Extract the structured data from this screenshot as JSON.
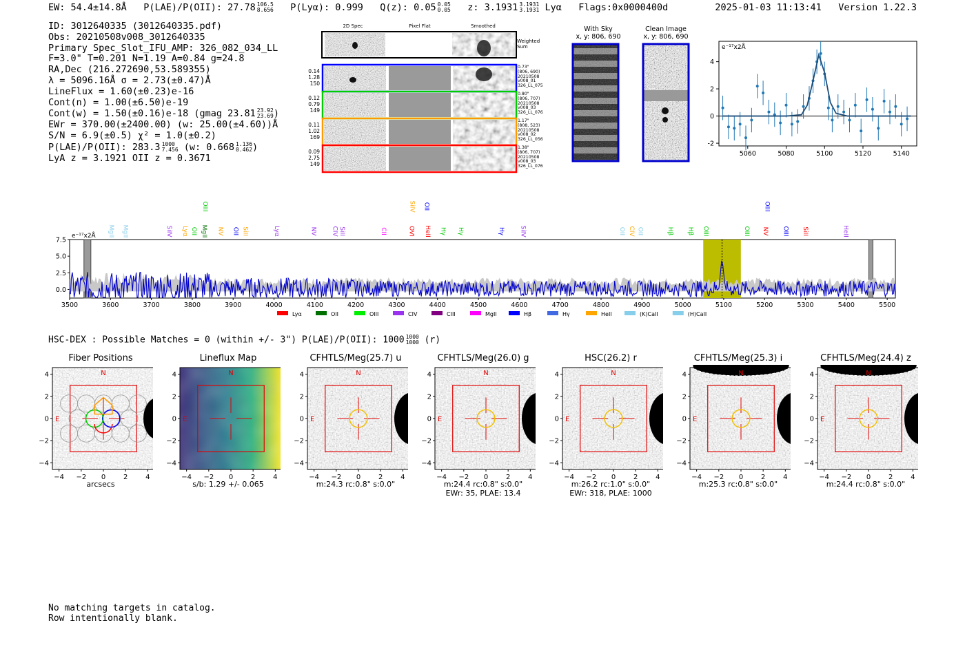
{
  "header": {
    "ew": "EW: 54.4±14.8Å",
    "plae_label": "P(LAE)/P(OII): 27.78",
    "plae_hi": "106.5",
    "plae_lo": "8.656",
    "plya": "P(Lyα): 0.999",
    "qz_label": "Q(z): 0.05",
    "qz_hi": "0.05",
    "qz_lo": "0.05",
    "z_label": "z: 3.1931",
    "z_hi": "3.1931",
    "z_lo": "3.1931",
    "z_line": "Lyα",
    "flags": "Flags:0x0000400d",
    "datetime": "2025-01-03 11:13:41",
    "version": "Version 1.22.3"
  },
  "info": {
    "id": "ID: 3012640335 (3012640335.pdf)",
    "obs": "Obs: 20210508v008_3012640335",
    "primary": "Primary Spec_Slot_IFU_AMP: 326_082_034_LL",
    "fit": "F=3.0\"  T=0.201  N=1.19  A=0.84  g=24.8",
    "radec": "RA,Dec (216.272690,53.589355)",
    "lambda": "λ = 5096.16Å  σ = 2.73(±0.47)Å",
    "lineflux": "LineFlux = 1.60(±0.23)e-16",
    "contn": "Cont(n) = 1.00(±6.50)e-19",
    "contw": "Cont(w) = 1.50(±0.16)e-18 (gmag 23.81",
    "contw_hi": "23.92",
    "contw_lo": "23.69",
    "ewr": "EWr = 370.00(±2400.00) (w: 25.00(±4.60))Å",
    "sn": "S/N = 6.9(±0.5)  χ² = 1.0(±0.2)",
    "plae2": "P(LAE)/P(OII): 283.3",
    "plae2_hi": "1000",
    "plae2_lo": "7.456",
    "plae2_w": "(w: 0.668",
    "plae2_w_hi": "1.136",
    "plae2_w_lo": "0.462",
    "lyaz": "LyA z = 3.1921  OII z = 0.3671"
  },
  "stamps": {
    "col_2d": "2D Spec",
    "col_flat": "Pixel Flat",
    "col_smooth": "Smoothed",
    "weighted": "Weighted Sum",
    "fibers": [
      {
        "a": "0.14",
        "b": "1.28",
        "c": "150",
        "pos": "0.73\"",
        "xy": "(806, 690)",
        "date": "20210508",
        "shot": "v008_01",
        "amp": "326_LL_075",
        "color": "#0000ff"
      },
      {
        "a": "0.12",
        "b": "0.79",
        "c": "149",
        "pos": "0.80\"",
        "xy": "(806, 707)",
        "date": "20210508",
        "shot": "v008_03",
        "amp": "326_LL_076",
        "color": "#00cc00"
      },
      {
        "a": "0.11",
        "b": "1.02",
        "c": "169",
        "pos": "1.17\"",
        "xy": "(808, 523)",
        "date": "20210508",
        "shot": "v008_02",
        "amp": "326_LL_056",
        "color": "#ff9900"
      },
      {
        "a": "0.09",
        "b": "2.75",
        "c": "149",
        "pos": "1.38\"",
        "xy": "(806, 707)",
        "date": "20210508",
        "shot": "v008_03",
        "amp": "326_LL_076",
        "color": "#ff0000"
      }
    ],
    "with_sky": "With Sky",
    "with_sky_xy": "x, y: 806, 690",
    "clean": "Clean Image",
    "clean_xy": "x, y: 806, 690"
  },
  "chart_data": [
    {
      "type": "line",
      "title": "zoom spectrum",
      "ylabel": "e⁻¹⁷x2Å",
      "x": [
        5047,
        5050,
        5053,
        5056,
        5059,
        5062,
        5065,
        5068,
        5071,
        5074,
        5077,
        5080,
        5083,
        5086,
        5089,
        5092,
        5094,
        5096,
        5098,
        5100,
        5102,
        5104,
        5107,
        5110,
        5113,
        5116,
        5119,
        5122,
        5125,
        5128,
        5131,
        5134,
        5137,
        5140,
        5143
      ],
      "y": [
        0.6,
        -0.8,
        -0.9,
        -0.6,
        -1.6,
        -0.3,
        2.2,
        1.7,
        0.3,
        0.1,
        -0.5,
        0.8,
        -0.6,
        -0.4,
        0.7,
        1.3,
        2.6,
        4.0,
        4.6,
        3.1,
        0.6,
        -0.3,
        0.7,
        0.3,
        -0.3,
        0.8,
        -1.1,
        1.2,
        0.5,
        -0.9,
        1.1,
        0.3,
        0.7,
        -0.6,
        -0.2
      ],
      "err": 0.9,
      "fit_x": [
        5047,
        5080,
        5088,
        5091,
        5094,
        5097,
        5100,
        5103,
        5106,
        5112,
        5145
      ],
      "fit_y": [
        0,
        0,
        0.1,
        0.8,
        2.6,
        4.5,
        3.2,
        1.0,
        0.2,
        0,
        0
      ],
      "xlim": [
        5045,
        5148
      ],
      "ylim": [
        -2.2,
        5.5
      ],
      "xticks": [
        5060,
        5080,
        5100,
        5120,
        5140
      ],
      "yticks": [
        -2,
        0,
        2,
        4
      ]
    },
    {
      "type": "line",
      "title": "full spectrum",
      "ylabel": "e⁻¹⁷x2Å",
      "xlim": [
        3500,
        5520
      ],
      "ylim": [
        -1.3,
        7.5
      ],
      "xticks": [
        3500,
        3600,
        3700,
        3800,
        3900,
        4000,
        4100,
        4200,
        4300,
        4400,
        4500,
        4600,
        4700,
        4800,
        4900,
        5000,
        5100,
        5200,
        5300,
        5400,
        5500
      ],
      "yticks": [
        0.0,
        2.5,
        5.0,
        7.5
      ],
      "ytick_labels": [
        "0.0",
        "2.5",
        "5.0",
        "7.5"
      ],
      "highlight_range": [
        5050,
        5142
      ],
      "emission_line": 5096,
      "legend": [
        {
          "label": "Lyα",
          "color": "#ff0000"
        },
        {
          "label": "OII",
          "color": "#007000"
        },
        {
          "label": "OIII",
          "color": "#00ee00"
        },
        {
          "label": "CIV",
          "color": "#9933ee"
        },
        {
          "label": "CIII",
          "color": "#800080"
        },
        {
          "label": "MgII",
          "color": "#ff00ff"
        },
        {
          "label": "Hβ",
          "color": "#0000ff"
        },
        {
          "label": "Hγ",
          "color": "#4169e1"
        },
        {
          "label": "HeII",
          "color": "#ffa500"
        },
        {
          "label": "(K)CaII",
          "color": "#87ceeb"
        },
        {
          "label": "(H)CaII",
          "color": "#87ceeb"
        }
      ],
      "line_labels": [
        {
          "name": "MgII",
          "x": 3593,
          "color": "#87ceeb",
          "row": 1
        },
        {
          "name": "MgII",
          "x": 3627,
          "color": "#87ceeb",
          "row": 1
        },
        {
          "name": "SiIV",
          "x": 3734,
          "color": "#9933ee",
          "row": 1
        },
        {
          "name": "Lyα",
          "x": 3773,
          "color": "#ffa500",
          "row": 1
        },
        {
          "name": "OII",
          "x": 3795,
          "color": "#00cc00",
          "row": 1
        },
        {
          "name": "MgII",
          "x": 3820,
          "color": "#007000",
          "row": 1
        },
        {
          "name": "OIII",
          "x": 3822,
          "color": "#00cc00",
          "row": 0
        },
        {
          "name": "NV",
          "x": 3860,
          "color": "#ffa500",
          "row": 1
        },
        {
          "name": "OII",
          "x": 3897,
          "color": "#0000ff",
          "row": 1
        },
        {
          "name": "SiII",
          "x": 3921,
          "color": "#ffa500",
          "row": 1
        },
        {
          "name": "Lyα",
          "x": 3997,
          "color": "#9933ee",
          "row": 1
        },
        {
          "name": "NV",
          "x": 4088,
          "color": "#9933ee",
          "row": 1
        },
        {
          "name": "CIV",
          "x": 4140,
          "color": "#9933ee",
          "row": 1
        },
        {
          "name": "SiII",
          "x": 4158,
          "color": "#9933ee",
          "row": 1
        },
        {
          "name": "CII",
          "x": 4259,
          "color": "#ff00ff",
          "row": 1
        },
        {
          "name": "OVI",
          "x": 4327,
          "color": "#ff0000",
          "row": 1
        },
        {
          "name": "SiIV",
          "x": 4329,
          "color": "#ffa500",
          "row": 0
        },
        {
          "name": "HeII",
          "x": 4367,
          "color": "#ff0000",
          "row": 1
        },
        {
          "name": "OII",
          "x": 4364,
          "color": "#0000ff",
          "row": 0
        },
        {
          "name": "Hγ",
          "x": 4405,
          "color": "#00cc00",
          "row": 1
        },
        {
          "name": "Hγ",
          "x": 4448,
          "color": "#00cc00",
          "row": 1
        },
        {
          "name": "Hγ",
          "x": 4547,
          "color": "#0000ff",
          "row": 1
        },
        {
          "name": "SiIV",
          "x": 4600,
          "color": "#9933ee",
          "row": 1
        },
        {
          "name": "OII",
          "x": 4842,
          "color": "#87ceeb",
          "row": 1
        },
        {
          "name": "CIV",
          "x": 4866,
          "color": "#ffa500",
          "row": 1
        },
        {
          "name": "OII",
          "x": 4887,
          "color": "#87ceeb",
          "row": 1
        },
        {
          "name": "Hβ",
          "x": 4960,
          "color": "#00cc00",
          "row": 1
        },
        {
          "name": "Hβ",
          "x": 5010,
          "color": "#00cc00",
          "row": 1
        },
        {
          "name": "OIII",
          "x": 5047,
          "color": "#00cc00",
          "row": 1
        },
        {
          "name": "OIII",
          "x": 5147,
          "color": "#00cc00",
          "row": 1
        },
        {
          "name": "NV",
          "x": 5193,
          "color": "#ff0000",
          "row": 1
        },
        {
          "name": "OIII",
          "x": 5197,
          "color": "#0000ff",
          "row": 0
        },
        {
          "name": "OIII",
          "x": 5243,
          "color": "#0000ff",
          "row": 1
        },
        {
          "name": "SiII",
          "x": 5291,
          "color": "#ff0000",
          "row": 1
        },
        {
          "name": "HeII",
          "x": 5389,
          "color": "#9933ee",
          "row": 1
        }
      ]
    }
  ],
  "catalog": {
    "summary": "HSC-DEX : Possible Matches = 0 (within +/- 3\")  P(LAE)/P(OII): 1000",
    "summary_hi": "1000",
    "summary_lo": "1000",
    "summary_band": "(r)",
    "no_match": "No matching targets in catalog.",
    "blank": "Row intentionally blank."
  },
  "cutouts": [
    {
      "title": "Fiber Positions",
      "cap1": "arcsecs",
      "cap2": ""
    },
    {
      "title": "Lineflux Map",
      "cap1": "s/b: 1.29 +/- 0.065",
      "cap2": ""
    },
    {
      "title": "CFHTLS/Meg(25.7) u",
      "cap1": "m:24.3 rc:0.8\"  s:0.0\"",
      "cap2": ""
    },
    {
      "title": "CFHTLS/Meg(26.0) g",
      "cap1": "m:24.4 rc:0.8\"  s:0.0\"",
      "cap2": "EWr: 35, PLAE: 13.4"
    },
    {
      "title": "HSC(26.2) r",
      "cap1": "m:26.2 rc:1.0\"  s:0.0\"",
      "cap2": "EWr: 318, PLAE: 1000"
    },
    {
      "title": "CFHTLS/Meg(25.3) i",
      "cap1": "m:25.3 rc:0.8\"  s:0.0\"",
      "cap2": ""
    },
    {
      "title": "CFHTLS/Meg(24.4) z",
      "cap1": "m:24.4 rc:0.8\"  s:0.0\"",
      "cap2": ""
    }
  ],
  "axis": {
    "ticks": [
      "−4",
      "−2",
      "0",
      "2",
      "4"
    ],
    "north": "N",
    "east": "E"
  }
}
